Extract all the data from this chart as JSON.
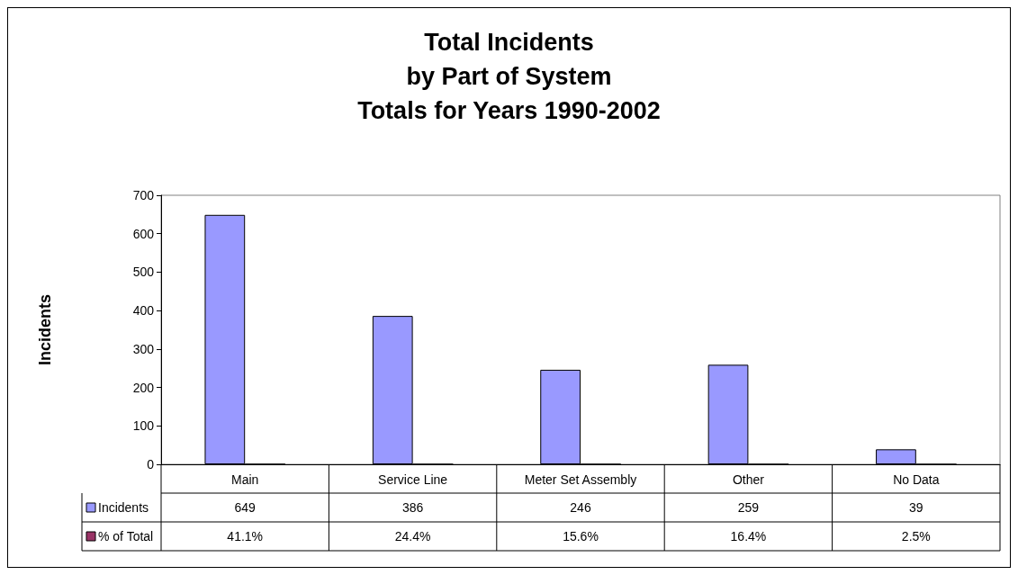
{
  "chart_data": {
    "type": "bar",
    "title": "Total Incidents\nby Part of System\nTotals for Years 1990-2002",
    "ylabel": "Incidents",
    "categories": [
      "Main",
      "Service Line",
      "Meter Set Assembly",
      "Other",
      "No Data"
    ],
    "series": [
      {
        "name": "Incidents",
        "color": "#9999ff",
        "values": [
          649,
          386,
          246,
          259,
          39
        ],
        "value_labels": [
          "649",
          "386",
          "246",
          "259",
          "39"
        ]
      },
      {
        "name": "% of Total",
        "color": "#993366",
        "values": [
          0.411,
          0.244,
          0.156,
          0.164,
          0.025
        ],
        "value_labels": [
          "41.1%",
          "24.4%",
          "15.6%",
          "16.4%",
          "2.5%"
        ]
      }
    ],
    "ylim": [
      0,
      700
    ],
    "yticks": [
      0,
      100,
      200,
      300,
      400,
      500,
      600,
      700
    ],
    "grid": false
  }
}
